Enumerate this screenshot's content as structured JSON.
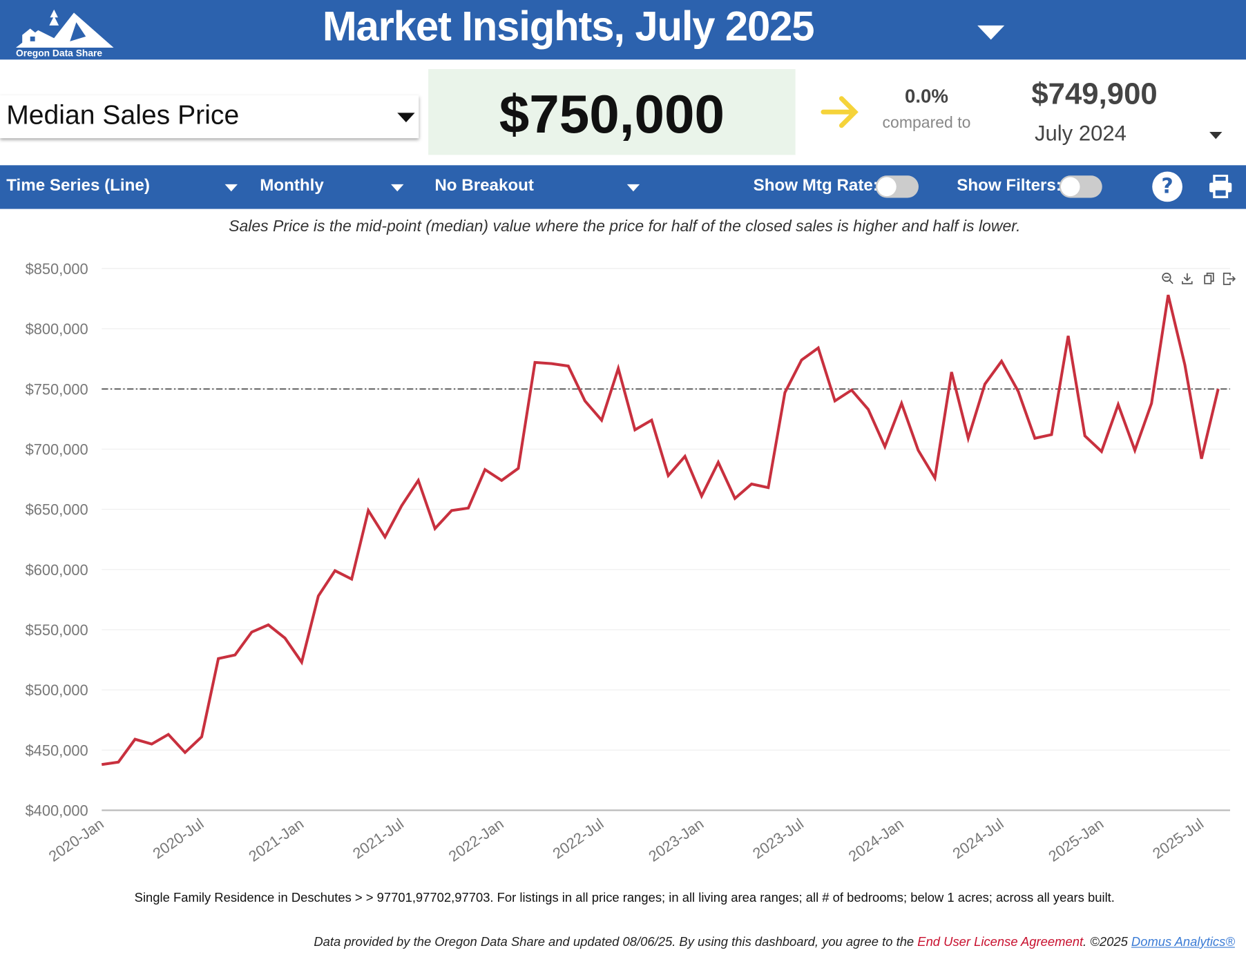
{
  "header": {
    "title": "Market Insights, July 2025",
    "logo_text": "Oregon Data Share"
  },
  "summary": {
    "metric": "Median Sales Price",
    "value": "$750,000",
    "change_pct": "0.0%",
    "compared_label": "compared to",
    "compare_value": "$749,900",
    "compare_period": "July 2024",
    "arrow_color": "#f5d33a"
  },
  "toolbar": {
    "chart_type": "Time Series (Line)",
    "interval": "Monthly",
    "breakout": "No Breakout",
    "mtg_rate_label": "Show Mtg Rate:",
    "mtg_rate_on": false,
    "filters_label": "Show Filters:",
    "filters_on": false,
    "help": "?"
  },
  "description": "Sales Price is the mid-point (median) value where the price for half of the closed sales is higher and half is lower.",
  "chart_icons": [
    "zoom-out-icon",
    "download-icon",
    "copy-icon",
    "export-icon"
  ],
  "chart_data": {
    "type": "line",
    "line_color": "#c8303e",
    "ylim": [
      400000,
      850000
    ],
    "y_ticks": [
      "$850,000",
      "$800,000",
      "$750,000",
      "$700,000",
      "$650,000",
      "$600,000",
      "$550,000",
      "$500,000",
      "$450,000",
      "$400,000"
    ],
    "x_ticks": [
      "2020-Jan",
      "2020-Jul",
      "2021-Jan",
      "2021-Jul",
      "2022-Jan",
      "2022-Jul",
      "2023-Jan",
      "2023-Jul",
      "2024-Jan",
      "2024-Jul",
      "2025-Jan",
      "2025-Jul"
    ],
    "x_start": "2020-Jan",
    "reference_line": 749900,
    "grid": true,
    "values": [
      438000,
      440000,
      459000,
      455000,
      463000,
      448000,
      461000,
      526000,
      529000,
      548000,
      554000,
      543000,
      523000,
      578000,
      599000,
      592000,
      649000,
      627000,
      653000,
      674000,
      634000,
      649000,
      651000,
      683000,
      674000,
      684000,
      772000,
      771000,
      769000,
      740000,
      724000,
      767000,
      716000,
      724000,
      678000,
      694000,
      661000,
      689000,
      659000,
      671000,
      668000,
      747000,
      774000,
      784000,
      740000,
      749000,
      733000,
      702000,
      738000,
      699000,
      676000,
      764000,
      709000,
      754000,
      773000,
      748000,
      709000,
      712000,
      794000,
      711000,
      698000,
      737000,
      699000,
      738000,
      828000,
      770000,
      692000,
      750000
    ]
  },
  "caption": "Single Family Residence in Deschutes > > 97701,97702,97703. For listings in all price ranges; in all living area ranges; all # of bedrooms; below 1 acres; across all years built.",
  "footer": {
    "text": "Data provided by the Oregon Data Share and updated 08/06/25.  By using this dashboard, you agree to the ",
    "eula": "End User License Agreement",
    "copyright": ".  ©2025 ",
    "domus": "Domus Analytics®"
  }
}
